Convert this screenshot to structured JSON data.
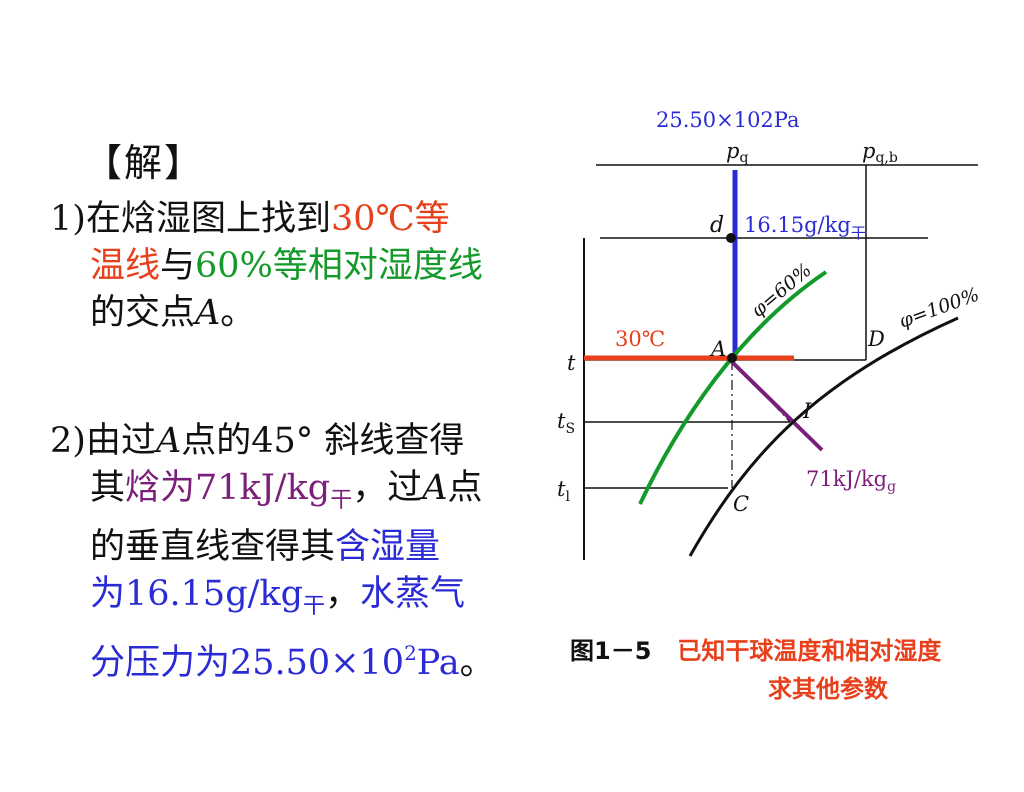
{
  "text": {
    "title": "【解】",
    "step1": {
      "num": "1)",
      "a": "在焓湿图上找到",
      "temp": "30℃等",
      "temp2": "温线",
      "b": "与",
      "rh": "60%等相对湿度线",
      "c": "的交点",
      "pointA": "A",
      "end": "。"
    },
    "step2": {
      "num": "2)",
      "a": "由过",
      "pointA": "A",
      "b": "点的45° 斜线查得",
      "c": "其",
      "enthalpy": "焓为71kJ/kg",
      "enthalpy_sub": "干",
      "d": "，过",
      "pointA2": "A",
      "e": "点",
      "f": "的垂直线查得其",
      "moisture1": "含湿量",
      "moisture2": "为16.15g/kg",
      "moisture_sub": "干",
      "g": "，",
      "vapor1": "水蒸气",
      "vapor2": "分压力为25.50×10",
      "vapor_sup": "2",
      "vapor3": "Pa",
      "end": "。"
    }
  },
  "diagram": {
    "pressure_value": "25.50×102Pa",
    "pq_main": "p",
    "pq_sub": "q",
    "pqb_main": "p",
    "pqb_sub": "q,b",
    "moisture_value": "16.15g/kg",
    "moisture_sub": "干",
    "point_d": "d",
    "rh60_label": "φ=60%",
    "rh100_label": "φ=100%",
    "temp_label": "30℃",
    "point_A": "A",
    "point_D": "D",
    "t_label": "t",
    "ts_main": "t",
    "ts_sub": "S",
    "t1_main": "t",
    "t1_sub": "l",
    "point_I": "I",
    "enthalpy_value": "71kJ/kg",
    "enthalpy_sub": "g",
    "point_C": "C"
  },
  "caption": {
    "number": "图1－5",
    "title_line1": "已知干球温度和相对湿度",
    "title_line2": "求其他参数"
  },
  "colors": {
    "red": "#e8401c",
    "green": "#149a2a",
    "blue": "#2b2bd6",
    "purple": "#7a1f7a",
    "black": "#111111"
  }
}
